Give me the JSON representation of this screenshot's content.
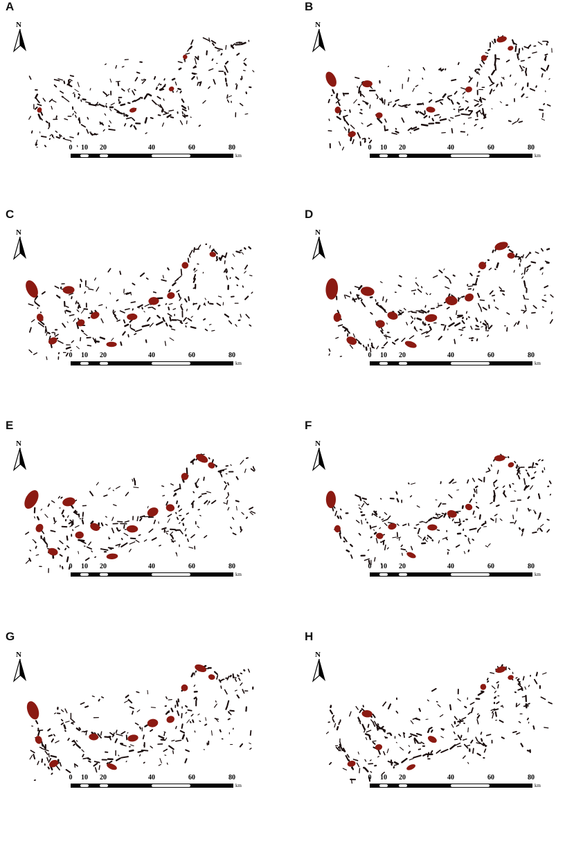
{
  "figure": {
    "panels": [
      {
        "letter": "A",
        "north": "N",
        "scale_ticks": [
          "0",
          "10",
          "20",
          "40",
          "60",
          "80"
        ],
        "scale_unit": "km"
      },
      {
        "letter": "B",
        "north": "N",
        "scale_ticks": [
          "0",
          "10",
          "20",
          "40",
          "60",
          "80"
        ],
        "scale_unit": "km"
      },
      {
        "letter": "C",
        "north": "N",
        "scale_ticks": [
          "0",
          "10",
          "20",
          "40",
          "60",
          "80"
        ],
        "scale_unit": "km"
      },
      {
        "letter": "D",
        "north": "N",
        "scale_ticks": [
          "0",
          "10",
          "20",
          "40",
          "60",
          "80"
        ],
        "scale_unit": "km"
      },
      {
        "letter": "E",
        "north": "N",
        "scale_ticks": [
          "0",
          "10",
          "20",
          "40",
          "60",
          "80"
        ],
        "scale_unit": "km"
      },
      {
        "letter": "F",
        "north": "N",
        "scale_ticks": [
          "0",
          "10",
          "20",
          "40",
          "60",
          "80"
        ],
        "scale_unit": "km"
      },
      {
        "letter": "G",
        "north": "N",
        "scale_ticks": [
          "0",
          "10",
          "20",
          "40",
          "60",
          "80"
        ],
        "scale_unit": "km"
      },
      {
        "letter": "H",
        "north": "N",
        "scale_ticks": [
          "0",
          "10",
          "20",
          "40",
          "60",
          "80"
        ],
        "scale_unit": "km"
      }
    ]
  },
  "colors": {
    "stream": "#1a0d0d",
    "hotspot": "#8b1a12",
    "scale_bar": "#000000"
  },
  "icons": {
    "north_arrow": "north-arrow-icon"
  }
}
